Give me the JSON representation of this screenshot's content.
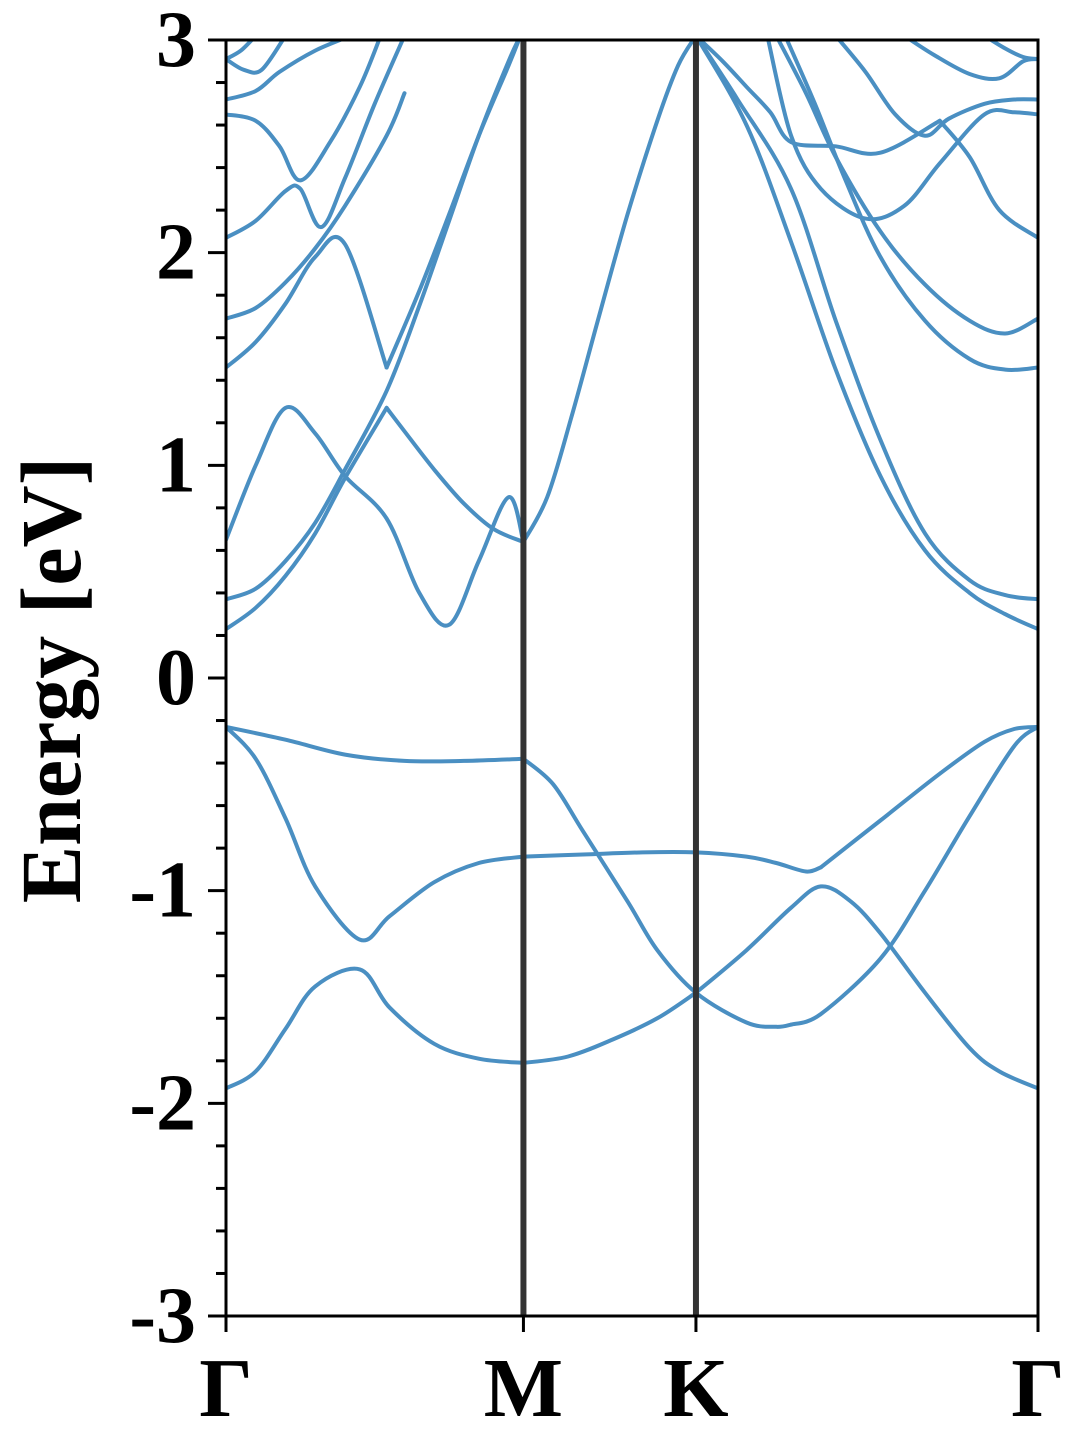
{
  "chart_data": {
    "type": "line",
    "title": "",
    "xlabel": "",
    "ylabel": "Energy [eV]",
    "ylim": [
      -3,
      3
    ],
    "yticks": [
      {
        "value": -3,
        "label": "-3"
      },
      {
        "value": -2,
        "label": "-2"
      },
      {
        "value": -1,
        "label": "-1"
      },
      {
        "value": 0,
        "label": "0"
      },
      {
        "value": 1,
        "label": "1"
      },
      {
        "value": 2,
        "label": "2"
      },
      {
        "value": 3,
        "label": "3"
      }
    ],
    "yminor_step": 0.2,
    "xlim": [
      0,
      2.73
    ],
    "kpoints": [
      {
        "label": "Γ",
        "position": 0
      },
      {
        "label": "M",
        "position": 1
      },
      {
        "label": "K",
        "position": 1.58
      },
      {
        "label": "Γ",
        "position": 2.73
      }
    ],
    "grid": false,
    "legend": "none",
    "line_color": "#4a8fc2",
    "vline_color": "#333333",
    "series": [
      {
        "x": [
          0,
          0.1,
          0.2,
          0.3,
          0.45,
          0.55,
          0.7,
          0.85,
          1.0
        ],
        "y": [
          -1.93,
          -1.85,
          -1.65,
          -1.45,
          -1.37,
          -1.55,
          -1.72,
          -1.79,
          -1.81
        ]
      },
      {
        "x": [
          1.0,
          1.15,
          1.3,
          1.45,
          1.58
        ],
        "y": [
          -1.81,
          -1.78,
          -1.7,
          -1.6,
          -1.48
        ]
      },
      {
        "x": [
          1.58,
          1.75,
          1.9,
          2.0,
          2.1,
          2.2,
          2.35,
          2.5,
          2.6,
          2.73
        ],
        "y": [
          -1.48,
          -1.28,
          -1.08,
          -0.98,
          -1.05,
          -1.2,
          -1.48,
          -1.74,
          -1.85,
          -1.93
        ]
      },
      {
        "x": [
          0,
          0.1,
          0.2,
          0.3,
          0.45,
          0.55,
          0.7,
          0.85,
          1.0
        ],
        "y": [
          -0.23,
          -0.38,
          -0.66,
          -0.98,
          -1.23,
          -1.12,
          -0.96,
          -0.87,
          -0.84
        ]
      },
      {
        "x": [
          1.0,
          1.2,
          1.4,
          1.58,
          1.75,
          1.85,
          1.95,
          2.0
        ],
        "y": [
          -0.84,
          -0.83,
          -0.82,
          -0.82,
          -0.84,
          -0.87,
          -0.91,
          -0.89
        ]
      },
      {
        "x": [
          2.0,
          2.2,
          2.4,
          2.55,
          2.65,
          2.73
        ],
        "y": [
          -0.89,
          -0.67,
          -0.45,
          -0.3,
          -0.24,
          -0.23
        ]
      },
      {
        "x": [
          0,
          0.2,
          0.4,
          0.6,
          0.8,
          1.0
        ],
        "y": [
          -0.23,
          -0.29,
          -0.36,
          -0.39,
          -0.39,
          -0.38
        ]
      },
      {
        "x": [
          1.0,
          1.1,
          1.2,
          1.35,
          1.45,
          1.58,
          1.75,
          1.85,
          1.9
        ],
        "y": [
          -0.38,
          -0.5,
          -0.72,
          -1.05,
          -1.28,
          -1.48,
          -1.62,
          -1.64,
          -1.63
        ]
      },
      {
        "x": [
          1.9,
          2.0,
          2.2,
          2.35,
          2.5,
          2.65,
          2.73
        ],
        "y": [
          -1.63,
          -1.58,
          -1.32,
          -1.0,
          -0.65,
          -0.32,
          -0.23
        ]
      },
      {
        "x": [
          0,
          0.1,
          0.2,
          0.3,
          0.4,
          0.54,
          0.65,
          0.75,
          0.85,
          0.95,
          1.0
        ],
        "y": [
          0.65,
          1.0,
          1.27,
          1.15,
          0.95,
          0.75,
          0.4,
          0.25,
          0.55,
          0.85,
          0.64
        ]
      },
      {
        "x": [
          1.0,
          1.08,
          1.16,
          1.25,
          1.35,
          1.45,
          1.52,
          1.58
        ],
        "y": [
          0.64,
          0.85,
          1.22,
          1.68,
          2.18,
          2.62,
          2.88,
          3.02
        ]
      },
      {
        "x": [
          0,
          0.1,
          0.2,
          0.3,
          0.4,
          0.54
        ],
        "y": [
          0.23,
          0.33,
          0.48,
          0.68,
          0.94,
          1.27
        ]
      },
      {
        "x": [
          0.54,
          0.6,
          0.7,
          0.8,
          0.9,
          1.0
        ],
        "y": [
          1.27,
          1.16,
          0.98,
          0.82,
          0.7,
          0.64
        ]
      },
      {
        "x": [
          0,
          0.1,
          0.2,
          0.3,
          0.4,
          0.54,
          0.65,
          0.75,
          0.85,
          0.95,
          0.99
        ],
        "y": [
          0.37,
          0.42,
          0.55,
          0.73,
          0.98,
          1.35,
          1.75,
          2.15,
          2.55,
          2.9,
          3.02
        ]
      },
      {
        "x": [
          0,
          0.1,
          0.2,
          0.3,
          0.4,
          0.54
        ],
        "y": [
          1.46,
          1.58,
          1.76,
          1.98,
          2.04,
          1.46
        ]
      },
      {
        "x": [
          0.54,
          0.65,
          0.75,
          0.85,
          0.95,
          0.99
        ],
        "y": [
          1.46,
          1.82,
          2.18,
          2.55,
          2.88,
          3.02
        ]
      },
      {
        "x": [
          0,
          0.1,
          0.2,
          0.3,
          0.4,
          0.54,
          0.6
        ],
        "y": [
          1.69,
          1.74,
          1.86,
          2.02,
          2.22,
          2.55,
          2.75
        ]
      },
      {
        "x": [
          0,
          0.1,
          0.2,
          0.25,
          0.32,
          0.4,
          0.5,
          0.6
        ],
        "y": [
          2.07,
          2.15,
          2.29,
          2.3,
          2.12,
          2.35,
          2.7,
          3.02
        ]
      },
      {
        "x": [
          0,
          0.1,
          0.18,
          0.25,
          0.35,
          0.45,
          0.52
        ],
        "y": [
          2.65,
          2.62,
          2.5,
          2.34,
          2.52,
          2.78,
          3.02
        ]
      },
      {
        "x": [
          0,
          0.1,
          0.18,
          0.3,
          0.42
        ],
        "y": [
          2.72,
          2.76,
          2.85,
          2.95,
          3.02
        ]
      },
      {
        "x": [
          0,
          0.06,
          0.12,
          0.2
        ],
        "y": [
          2.91,
          2.86,
          2.86,
          3.02
        ]
      },
      {
        "x": [
          0,
          0.05,
          0.1
        ],
        "y": [
          2.91,
          2.95,
          3.02
        ]
      },
      {
        "x": [
          1.58,
          1.75,
          1.9,
          2.05,
          2.2,
          2.35,
          2.5,
          2.62,
          2.73
        ],
        "y": [
          3.02,
          2.6,
          2.05,
          1.45,
          0.95,
          0.6,
          0.4,
          0.3,
          0.23
        ]
      },
      {
        "x": [
          1.58,
          1.72,
          1.9,
          2.05,
          2.2,
          2.35,
          2.5,
          2.62,
          2.73
        ],
        "y": [
          3.02,
          2.72,
          2.3,
          1.68,
          1.12,
          0.68,
          0.46,
          0.39,
          0.37
        ]
      },
      {
        "x": [
          1.58,
          1.67,
          1.75,
          1.83,
          1.9,
          2.05,
          2.2,
          2.4
        ],
        "y": [
          3.02,
          2.9,
          2.78,
          2.66,
          2.52,
          2.5,
          2.47,
          2.62
        ]
      },
      {
        "x": [
          2.4,
          2.5,
          2.6,
          2.73
        ],
        "y": [
          2.62,
          2.45,
          2.2,
          2.07
        ]
      },
      {
        "x": [
          1.82,
          1.9,
          2.0,
          2.15,
          2.28,
          2.4,
          2.55,
          2.65,
          2.73
        ],
        "y": [
          3.02,
          2.55,
          2.3,
          2.16,
          2.22,
          2.42,
          2.65,
          2.66,
          2.65
        ]
      },
      {
        "x": [
          1.85,
          1.95,
          2.05,
          2.2,
          2.35,
          2.5,
          2.62,
          2.73
        ],
        "y": [
          3.02,
          2.75,
          2.45,
          2.1,
          1.85,
          1.68,
          1.62,
          1.69
        ]
      },
      {
        "x": [
          1.88,
          1.98,
          2.08,
          2.2,
          2.35,
          2.5,
          2.62,
          2.73
        ],
        "y": [
          3.02,
          2.7,
          2.35,
          1.98,
          1.68,
          1.5,
          1.45,
          1.46
        ]
      },
      {
        "x": [
          2.05,
          2.15,
          2.25,
          2.35,
          2.43,
          2.55,
          2.65,
          2.73
        ],
        "y": [
          3.02,
          2.85,
          2.65,
          2.55,
          2.63,
          2.7,
          2.72,
          2.72
        ]
      },
      {
        "x": [
          2.28,
          2.38,
          2.5,
          2.6,
          2.68,
          2.73
        ],
        "y": [
          3.02,
          2.93,
          2.84,
          2.82,
          2.9,
          2.91
        ]
      },
      {
        "x": [
          2.55,
          2.62,
          2.68,
          2.73
        ],
        "y": [
          3.02,
          2.96,
          2.92,
          2.91
        ]
      }
    ]
  }
}
